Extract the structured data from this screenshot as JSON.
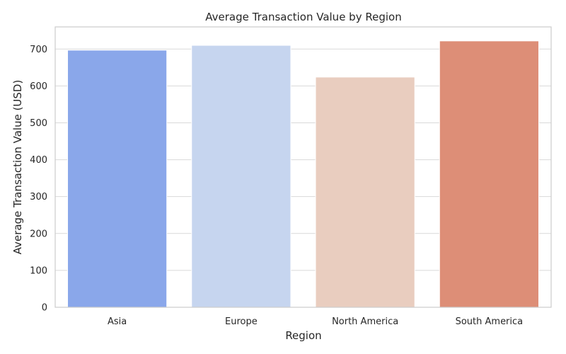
{
  "chart_data": {
    "type": "bar",
    "title": "Average Transaction Value by Region",
    "xlabel": "Region",
    "ylabel": "Average Transaction Value (USD)",
    "categories": [
      "Asia",
      "Europe",
      "North America",
      "South America"
    ],
    "values": [
      697,
      710,
      624,
      722
    ],
    "ylim": [
      0,
      760
    ],
    "yticks": [
      0,
      100,
      200,
      300,
      400,
      500,
      600,
      700
    ],
    "grid": true,
    "legend": "none",
    "colors": [
      "#8aa7ea",
      "#c6d5ef",
      "#e9cdbf",
      "#dd8e77"
    ]
  }
}
